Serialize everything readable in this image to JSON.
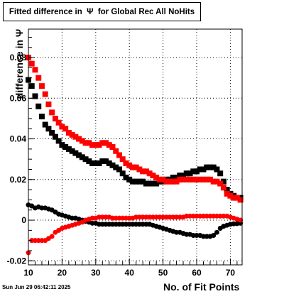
{
  "title": "Fitted difference in  Ψ  for Global Rec All NoHits",
  "timestamp": "Sun Jun 29 06:42:11 2025",
  "chart_data": {
    "type": "scatter",
    "title": "Fitted difference in  Ψ  for Global Rec All NoHits",
    "xlabel": "No. of Fit Points",
    "ylabel": "difference in  Ψ",
    "xlim": [
      10,
      73.5
    ],
    "ylim": [
      -0.022,
      0.094
    ],
    "xticks": [
      10,
      20,
      30,
      40,
      50,
      60,
      70
    ],
    "yticks": [
      -0.02,
      0,
      0.02,
      0.04,
      0.06,
      0.08
    ],
    "ytick_labels": [
      "-0.02",
      "0",
      "0.02",
      "0.04",
      "0.06",
      "0.08"
    ],
    "grid": true,
    "series": [
      {
        "color": "#000000",
        "marker": "square",
        "x": [
          10,
          11,
          12,
          13,
          14,
          15,
          16,
          17,
          18,
          19,
          20,
          21,
          22,
          23,
          24,
          25,
          26,
          27,
          28,
          29,
          30,
          31,
          32,
          33,
          34,
          35,
          36,
          37,
          38,
          39,
          40,
          41,
          42,
          43,
          44,
          45,
          46,
          47,
          48,
          49,
          50,
          51,
          52,
          53,
          54,
          55,
          56,
          57,
          58,
          59,
          60,
          61,
          62,
          63,
          64,
          65,
          66,
          67,
          68,
          69,
          70,
          71,
          72,
          73
        ],
        "y": [
          0.069,
          0.066,
          0.061,
          0.056,
          0.051,
          0.047,
          0.045,
          0.043,
          0.041,
          0.039,
          0.037,
          0.036,
          0.035,
          0.034,
          0.033,
          0.032,
          0.031,
          0.03,
          0.029,
          0.028,
          0.028,
          0.028,
          0.029,
          0.029,
          0.028,
          0.027,
          0.026,
          0.025,
          0.023,
          0.021,
          0.02,
          0.019,
          0.019,
          0.019,
          0.019,
          0.018,
          0.018,
          0.018,
          0.018,
          0.019,
          0.019,
          0.02,
          0.02,
          0.021,
          0.021,
          0.022,
          0.022,
          0.023,
          0.023,
          0.024,
          0.024,
          0.025,
          0.025,
          0.026,
          0.026,
          0.026,
          0.025,
          0.023,
          0.019,
          0.015,
          0.013,
          0.012,
          0.011,
          0.011
        ]
      },
      {
        "color": "#ff0000",
        "marker": "square",
        "x": [
          10,
          11,
          12,
          13,
          14,
          15,
          16,
          17,
          18,
          19,
          20,
          21,
          22,
          23,
          24,
          25,
          26,
          27,
          28,
          29,
          30,
          31,
          32,
          33,
          34,
          35,
          36,
          37,
          38,
          39,
          40,
          41,
          42,
          43,
          44,
          45,
          46,
          47,
          48,
          49,
          50,
          51,
          52,
          53,
          54,
          55,
          56,
          57,
          58,
          59,
          60,
          61,
          62,
          63,
          64,
          65,
          66,
          67,
          68,
          69,
          70,
          71,
          72,
          73
        ],
        "y": [
          0.08,
          0.077,
          0.074,
          0.07,
          0.066,
          0.062,
          0.057,
          0.053,
          0.05,
          0.048,
          0.046,
          0.045,
          0.043,
          0.042,
          0.041,
          0.04,
          0.039,
          0.038,
          0.038,
          0.037,
          0.037,
          0.037,
          0.038,
          0.038,
          0.037,
          0.036,
          0.034,
          0.032,
          0.03,
          0.028,
          0.027,
          0.026,
          0.026,
          0.025,
          0.024,
          0.024,
          0.023,
          0.022,
          0.021,
          0.02,
          0.02,
          0.019,
          0.019,
          0.019,
          0.019,
          0.02,
          0.02,
          0.02,
          0.02,
          0.02,
          0.02,
          0.02,
          0.02,
          0.02,
          0.02,
          0.019,
          0.019,
          0.018,
          0.016,
          0.013,
          0.012,
          0.011,
          0.011,
          0.01
        ]
      },
      {
        "color": "#000000",
        "marker": "circle",
        "x": [
          10,
          11,
          12,
          13,
          14,
          15,
          16,
          17,
          18,
          19,
          20,
          21,
          22,
          23,
          24,
          25,
          26,
          27,
          28,
          29,
          30,
          31,
          32,
          33,
          34,
          35,
          36,
          37,
          38,
          39,
          40,
          41,
          42,
          43,
          44,
          45,
          46,
          47,
          48,
          49,
          50,
          51,
          52,
          53,
          54,
          55,
          56,
          57,
          58,
          59,
          60,
          61,
          62,
          63,
          64,
          65,
          66,
          67,
          68,
          69,
          70,
          71,
          72,
          73
        ],
        "y": [
          0.0075,
          0.007,
          0.006,
          0.0065,
          0.006,
          0.006,
          0.0055,
          0.005,
          0.004,
          0.003,
          0.0025,
          0.002,
          0.0015,
          0.001,
          0.001,
          0.0005,
          0.0,
          -0.0005,
          -0.001,
          -0.0015,
          -0.0015,
          -0.002,
          -0.002,
          -0.002,
          -0.002,
          -0.002,
          -0.002,
          -0.002,
          -0.002,
          -0.002,
          -0.002,
          -0.002,
          -0.002,
          -0.002,
          -0.002,
          -0.002,
          -0.002,
          -0.0025,
          -0.003,
          -0.0035,
          -0.004,
          -0.0045,
          -0.005,
          -0.0055,
          -0.006,
          -0.006,
          -0.0065,
          -0.007,
          -0.007,
          -0.0075,
          -0.0075,
          -0.0075,
          -0.008,
          -0.008,
          -0.008,
          -0.0075,
          -0.006,
          -0.004,
          -0.003,
          -0.0025,
          -0.002,
          -0.0018,
          -0.0017,
          -0.0015
        ]
      },
      {
        "color": "#ff0000",
        "marker": "circle",
        "x": [
          10,
          11,
          12,
          13,
          14,
          15,
          16,
          17,
          18,
          19,
          20,
          21,
          22,
          23,
          24,
          25,
          26,
          27,
          28,
          29,
          30,
          31,
          32,
          33,
          34,
          35,
          36,
          37,
          38,
          39,
          40,
          41,
          42,
          43,
          44,
          45,
          46,
          47,
          48,
          49,
          50,
          51,
          52,
          53,
          54,
          55,
          56,
          57,
          58,
          59,
          60,
          61,
          62,
          63,
          64,
          65,
          66,
          67,
          68,
          69,
          70,
          71,
          72,
          73
        ],
        "y": [
          -0.016,
          -0.01,
          -0.01,
          -0.01,
          -0.01,
          -0.01,
          -0.009,
          -0.008,
          -0.006,
          -0.005,
          -0.004,
          -0.0035,
          -0.003,
          -0.0025,
          -0.002,
          -0.0015,
          -0.001,
          0.0,
          0.0005,
          0.001,
          0.001,
          0.0015,
          0.0015,
          0.0015,
          0.0015,
          0.001,
          0.001,
          0.001,
          0.001,
          0.001,
          0.001,
          0.001,
          0.0015,
          0.0015,
          0.0015,
          0.0015,
          0.0015,
          0.0015,
          0.0015,
          0.0015,
          0.0015,
          0.0015,
          0.0015,
          0.0015,
          0.0015,
          0.0015,
          0.0015,
          0.002,
          0.002,
          0.002,
          0.002,
          0.002,
          0.002,
          0.002,
          0.002,
          0.002,
          0.002,
          0.002,
          0.002,
          0.002,
          0.0015,
          0.001,
          0.0005,
          0.0
        ]
      }
    ]
  }
}
